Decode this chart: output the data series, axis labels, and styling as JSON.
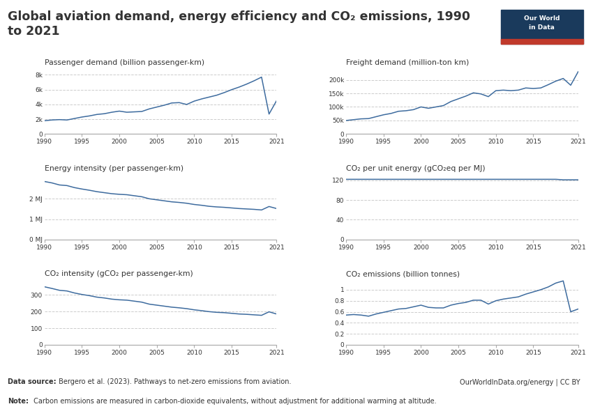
{
  "title": "Global aviation demand, energy efficiency and CO₂ emissions, 1990\nto 2021",
  "background_color": "#ffffff",
  "line_color": "#3d6b9e",
  "grid_color": "#cccccc",
  "font_color": "#333333",
  "subplot_titles": [
    "Passenger demand (billion passenger-km)",
    "Freight demand (million-ton km)",
    "Energy intensity (per passenger-km)",
    "CO₂ per unit energy (gCO₂eq per MJ)",
    "CO₂ intensity (gCO₂ per passenger-km)",
    "CO₂ emissions (billion tonnes)"
  ],
  "years": [
    1990,
    1991,
    1992,
    1993,
    1994,
    1995,
    1996,
    1997,
    1998,
    1999,
    2000,
    2001,
    2002,
    2003,
    2004,
    2005,
    2006,
    2007,
    2008,
    2009,
    2010,
    2011,
    2012,
    2013,
    2014,
    2015,
    2016,
    2017,
    2018,
    2019,
    2020,
    2021
  ],
  "passenger_demand": [
    1800,
    1900,
    1950,
    1900,
    2100,
    2300,
    2450,
    2650,
    2750,
    2950,
    3100,
    2950,
    3000,
    3050,
    3400,
    3650,
    3900,
    4200,
    4250,
    4000,
    4450,
    4750,
    5000,
    5250,
    5600,
    6000,
    6350,
    6750,
    7200,
    7700,
    2700,
    4500
  ],
  "freight_demand": [
    50000,
    53000,
    56000,
    57000,
    64000,
    71000,
    76000,
    84000,
    86000,
    90000,
    100000,
    95000,
    100000,
    105000,
    120000,
    130000,
    140000,
    152000,
    148000,
    138000,
    160000,
    162000,
    160000,
    162000,
    170000,
    168000,
    170000,
    182000,
    195000,
    205000,
    180000,
    230000
  ],
  "energy_intensity": [
    2.85,
    2.78,
    2.68,
    2.65,
    2.55,
    2.48,
    2.42,
    2.35,
    2.3,
    2.25,
    2.22,
    2.2,
    2.15,
    2.1,
    2.0,
    1.95,
    1.9,
    1.85,
    1.82,
    1.78,
    1.72,
    1.68,
    1.63,
    1.6,
    1.58,
    1.55,
    1.52,
    1.5,
    1.48,
    1.45,
    1.62,
    1.52
  ],
  "co2_per_unit_energy": [
    122,
    122,
    122,
    122,
    122,
    122,
    122,
    122,
    122,
    122,
    122,
    122,
    122,
    122,
    122,
    122,
    122,
    122,
    122,
    122,
    122,
    122,
    122,
    122,
    122,
    122,
    122,
    122,
    122,
    121,
    121,
    121
  ],
  "co2_intensity": [
    348,
    338,
    327,
    323,
    311,
    302,
    295,
    286,
    281,
    274,
    270,
    268,
    262,
    256,
    244,
    238,
    232,
    226,
    222,
    217,
    210,
    205,
    199,
    195,
    193,
    189,
    185,
    183,
    180,
    177,
    198,
    185
  ],
  "co2_emissions": [
    0.54,
    0.55,
    0.54,
    0.52,
    0.56,
    0.59,
    0.62,
    0.65,
    0.66,
    0.69,
    0.72,
    0.68,
    0.67,
    0.67,
    0.72,
    0.75,
    0.77,
    0.81,
    0.81,
    0.74,
    0.8,
    0.83,
    0.85,
    0.87,
    0.92,
    0.96,
    1.0,
    1.05,
    1.12,
    1.16,
    0.6,
    0.65
  ],
  "datasource_bold": "Data source:",
  "datasource_rest": " Bergero et al. (2023). Pathways to net-zero emissions from aviation.",
  "website": "OurWorldInData.org/energy | CC BY",
  "note_bold": "Note:",
  "note_rest": " Carbon emissions are measured in carbon-dioxide equivalents, without adjustment for additional warming at altitude.",
  "owid_box_color": "#1a3a5c",
  "owid_red": "#c0392b",
  "ytick_configs": [
    {
      "ticks": [
        0,
        2000,
        4000,
        6000,
        8000
      ],
      "labels": [
        "0",
        "2k",
        "4k",
        "6k",
        "8k"
      ],
      "ylim": [
        0,
        8800
      ]
    },
    {
      "ticks": [
        0,
        50000,
        100000,
        150000,
        200000
      ],
      "labels": [
        "0",
        "50k",
        "100k",
        "150k",
        "200k"
      ],
      "ylim": [
        0,
        240000
      ]
    },
    {
      "ticks": [
        0,
        1,
        2
      ],
      "labels": [
        "0 MJ",
        "1 MJ",
        "2 MJ"
      ],
      "ylim": [
        0,
        3.2
      ]
    },
    {
      "ticks": [
        0,
        40,
        80,
        120
      ],
      "labels": [
        "0",
        "40",
        "80",
        "120"
      ],
      "ylim": [
        0,
        132
      ]
    },
    {
      "ticks": [
        0,
        100,
        200,
        300
      ],
      "labels": [
        "0",
        "100",
        "200",
        "300"
      ],
      "ylim": [
        0,
        390
      ]
    },
    {
      "ticks": [
        0,
        0.2,
        0.4,
        0.6,
        0.8,
        1.0
      ],
      "labels": [
        "0",
        "0.2",
        "0.4",
        "0.6",
        "0.8",
        "1"
      ],
      "ylim": [
        0,
        1.18
      ]
    }
  ]
}
